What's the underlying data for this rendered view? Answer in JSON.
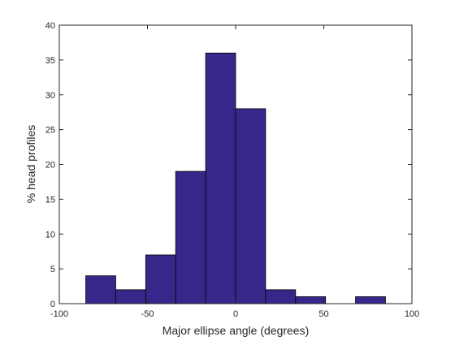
{
  "chart_data": {
    "type": "bar",
    "title": "",
    "xlabel": "Major ellipse angle (degrees)",
    "ylabel": "% head profiles",
    "xlim": [
      -100,
      100
    ],
    "ylim": [
      0,
      40
    ],
    "xticks": [
      -100,
      -50,
      0,
      50,
      100
    ],
    "yticks": [
      0,
      5,
      10,
      15,
      20,
      25,
      30,
      35,
      40
    ],
    "bin_edges": [
      -85,
      -68,
      -51,
      -34,
      -17,
      0,
      17,
      34,
      51,
      68,
      85
    ],
    "bin_centers": [
      -76.5,
      -59.5,
      -42.5,
      -25.5,
      -8.5,
      8.5,
      25.5,
      42.5,
      59.5,
      76.5
    ],
    "values": [
      4,
      2,
      7,
      19,
      36,
      28,
      2,
      1,
      0,
      1
    ],
    "bar_color": "#35288a",
    "edge_color": "#000000",
    "grid": false,
    "legend": "none"
  }
}
